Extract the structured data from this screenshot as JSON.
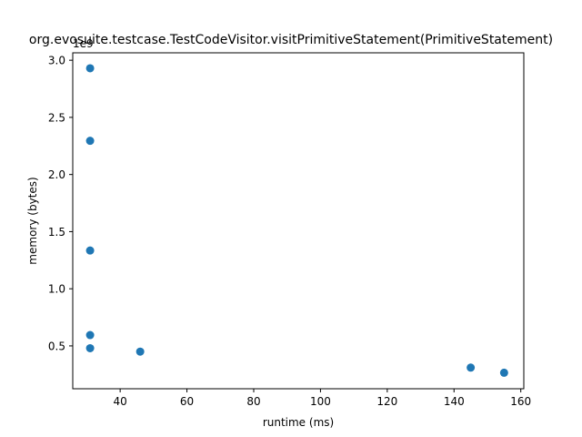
{
  "chart_data": {
    "type": "scatter",
    "title": "org.evosuite.testcase.TestCodeVisitor.visitPrimitiveStatement(PrimitiveStatement)",
    "xlabel": "runtime (ms)",
    "ylabel": "memory (bytes)",
    "y_offset_label": "1e9",
    "xlim": [
      25.8,
      160.9
    ],
    "ylim": [
      0.125,
      3.065
    ],
    "x_ticks": [
      40,
      60,
      80,
      100,
      120,
      140,
      160
    ],
    "x_tick_labels": [
      "40",
      "60",
      "80",
      "100",
      "120",
      "140",
      "160"
    ],
    "y_ticks": [
      0.5,
      1.0,
      1.5,
      2.0,
      2.5,
      3.0
    ],
    "y_tick_labels": [
      "0.5",
      "1.0",
      "1.5",
      "2.0",
      "2.5",
      "3.0"
    ],
    "grid": false,
    "marker_color": "#1f77b4",
    "points": [
      {
        "x": 31,
        "y": 2.93
      },
      {
        "x": 31,
        "y": 2.295
      },
      {
        "x": 31,
        "y": 1.335
      },
      {
        "x": 31,
        "y": 0.595
      },
      {
        "x": 31,
        "y": 0.48
      },
      {
        "x": 46,
        "y": 0.45
      },
      {
        "x": 145,
        "y": 0.31
      },
      {
        "x": 155,
        "y": 0.265
      }
    ]
  }
}
